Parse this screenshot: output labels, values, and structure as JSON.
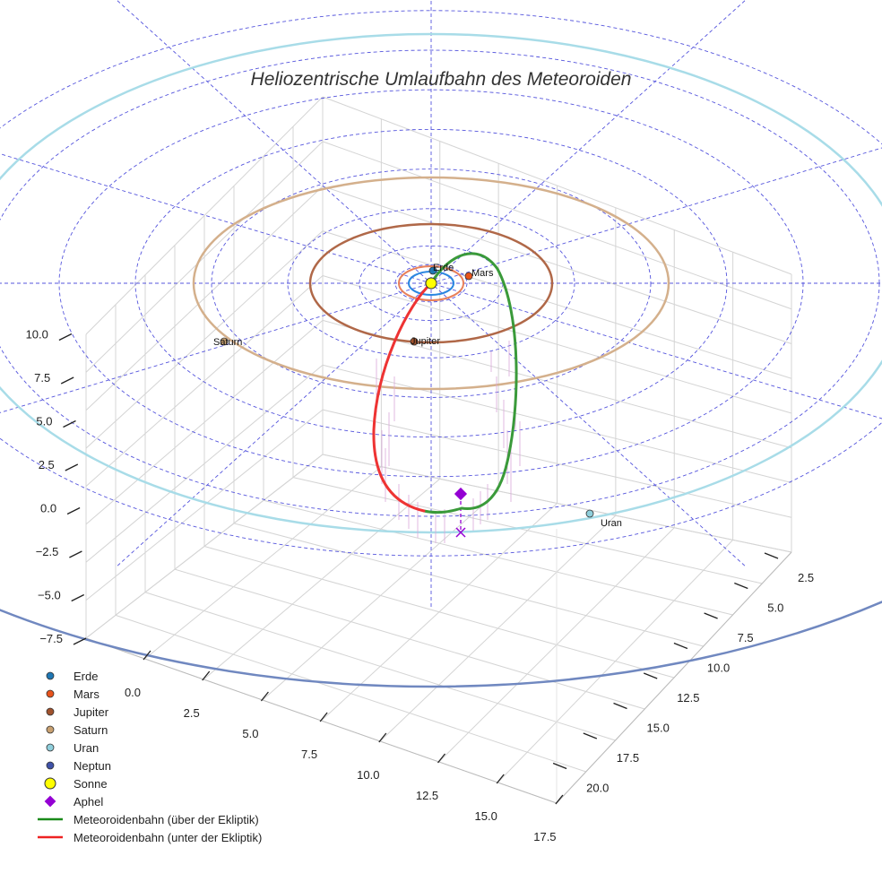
{
  "chart_data": {
    "type": "scatter",
    "title": "Heliozentrische Umlaufbahn des Meteoroiden",
    "z_ticks": [
      "−7.5",
      "−5.0",
      "−2.5",
      "0.0",
      "2.5",
      "5.0",
      "7.5",
      "10.0"
    ],
    "x_ticks": [
      "0.0",
      "2.5",
      "5.0",
      "7.5",
      "10.0",
      "12.5",
      "15.0",
      "17.5"
    ],
    "y_ticks": [
      "2.5",
      "5.0",
      "7.5",
      "10.0",
      "12.5",
      "15.0",
      "17.5",
      "20.0"
    ],
    "planets": [
      {
        "name": "Erde",
        "label": "Erde",
        "color": "#1f77b4"
      },
      {
        "name": "Mars",
        "label": "Mars",
        "color": "#e8531c"
      },
      {
        "name": "Jupiter",
        "label": "Jupiter",
        "color": "#a0522d"
      },
      {
        "name": "Saturn",
        "label": "Saturn",
        "color": "#c8a070"
      },
      {
        "name": "Uran",
        "label": "Uran",
        "color": "#8fcfdc"
      }
    ],
    "legend": [
      {
        "label": "Erde",
        "symbol": "dot",
        "color": "#1f77b4"
      },
      {
        "label": "Mars",
        "symbol": "dot",
        "color": "#e8531c"
      },
      {
        "label": "Jupiter",
        "symbol": "dot",
        "color": "#a0522d"
      },
      {
        "label": "Saturn",
        "symbol": "dot",
        "color": "#c8a070"
      },
      {
        "label": "Uran",
        "symbol": "dot",
        "color": "#8fcfdc"
      },
      {
        "label": "Neptun",
        "symbol": "dot",
        "color": "#3f52a8"
      },
      {
        "label": "Sonne",
        "symbol": "big-dot",
        "color": "#ffff00"
      },
      {
        "label": "Aphel",
        "symbol": "diamond",
        "color": "#9400d3"
      },
      {
        "label": "Meteoroidenbahn (über der Ekliptik)",
        "symbol": "line",
        "color": "#1a8a1a"
      },
      {
        "label": "Meteoroidenbahn (unter der Ekliptik)",
        "symbol": "line",
        "color": "#ee2222"
      }
    ],
    "legend_position": "bottom-left",
    "grid": true
  }
}
